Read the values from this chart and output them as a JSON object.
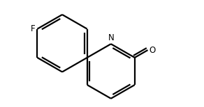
{
  "bg_color": "#ffffff",
  "line_color": "#000000",
  "line_width": 1.6,
  "font_size_label": 8.5,
  "F_label": "F",
  "N_label": "N",
  "O_label": "O"
}
